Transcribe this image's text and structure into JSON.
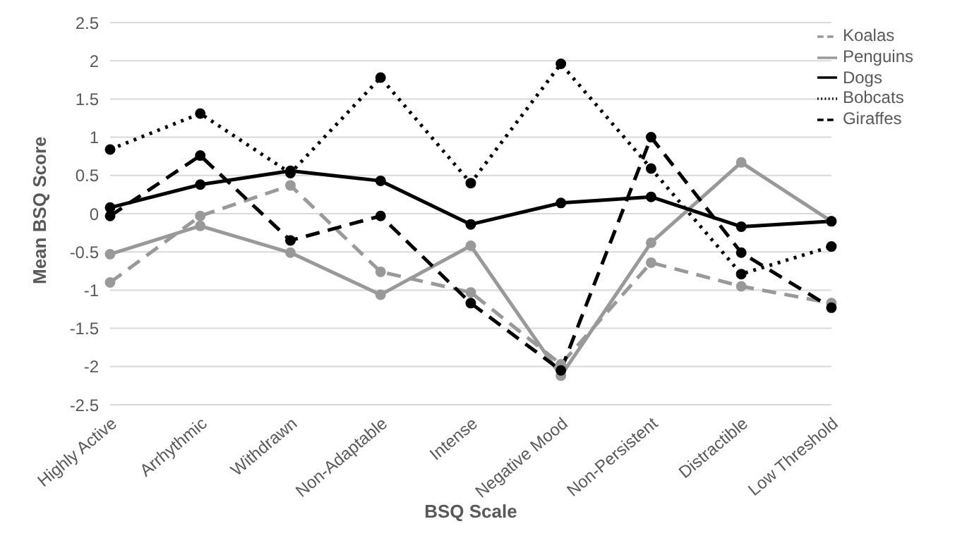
{
  "chart_data": {
    "type": "line",
    "xlabel": "BSQ Scale",
    "ylabel": "Mean BSQ Score",
    "categories": [
      "Highly Active",
      "Arrhythmic",
      "Withdrawn",
      "Non-Adaptable",
      "Intense",
      "Negative Mood",
      "Non-Persistent",
      "Distractible",
      "Low Threshold"
    ],
    "series": [
      {
        "name": "Koalas",
        "color": "#999999",
        "line_style": "dashed",
        "values": [
          -0.9,
          -0.03,
          0.37,
          -0.76,
          -1.03,
          -1.97,
          -0.64,
          -0.95,
          -1.17
        ]
      },
      {
        "name": "Penguins",
        "color": "#999999",
        "line_style": "solid",
        "values": [
          -0.53,
          -0.16,
          -0.51,
          -1.06,
          -0.42,
          -2.12,
          -0.38,
          0.67,
          -0.1
        ]
      },
      {
        "name": "Dogs",
        "color": "#000000",
        "line_style": "solid",
        "values": [
          0.08,
          0.38,
          0.56,
          0.43,
          -0.14,
          0.14,
          0.22,
          -0.17,
          -0.1
        ]
      },
      {
        "name": "Bobcats",
        "color": "#000000",
        "line_style": "dotted",
        "values": [
          0.84,
          1.31,
          0.53,
          1.78,
          0.4,
          1.96,
          0.59,
          -0.79,
          -0.43
        ]
      },
      {
        "name": "Giraffes",
        "color": "#000000",
        "line_style": "dashed",
        "values": [
          -0.03,
          0.76,
          -0.35,
          -0.03,
          -1.17,
          -2.05,
          1.0,
          -0.51,
          -1.23
        ]
      }
    ],
    "ylim": [
      -2.5,
      2.5
    ],
    "yticks": [
      -2.5,
      -2,
      -1.5,
      -1,
      -0.5,
      0,
      0.5,
      1,
      1.5,
      2,
      2.5
    ],
    "grid": "y",
    "legend": "top right",
    "marker": "circle"
  }
}
